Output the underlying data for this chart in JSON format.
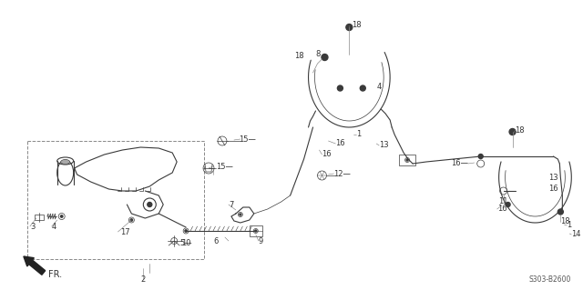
{
  "background_color": "#ffffff",
  "diagram_code": "S303-B2600",
  "fig_width": 6.4,
  "fig_height": 3.19,
  "dpi": 100,
  "line_color": "#3a3a3a",
  "line_color_light": "#666666",
  "label_color": "#333333",
  "label_fontsize": 6.0,
  "diagram_fontsize": 5.5
}
